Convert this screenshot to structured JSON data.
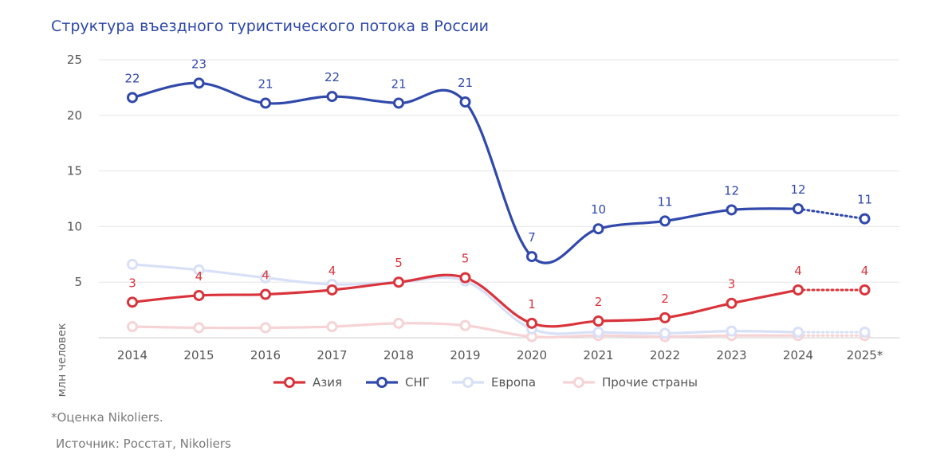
{
  "chart_data": {
    "type": "line",
    "title": "Структура въездного туристического потока в России",
    "ylabel": "млн человек",
    "xlabel": "",
    "categories": [
      "2014",
      "2015",
      "2016",
      "2017",
      "2018",
      "2019",
      "2020",
      "2021",
      "2022",
      "2023",
      "2024",
      "2025*"
    ],
    "ylim": [
      0,
      25
    ],
    "yticks": [
      "",
      "5",
      "10",
      "15",
      "20",
      "25"
    ],
    "grid": "horizontal",
    "legend_position": "bottom",
    "estimated_from_index": 10,
    "series": [
      {
        "name": "Азия",
        "color": "#d9343b",
        "values": [
          3.2,
          3.8,
          3.9,
          4.3,
          5.0,
          5.4,
          1.3,
          1.5,
          1.8,
          3.1,
          4.3,
          4.3
        ],
        "labels": [
          "3",
          "4",
          "4",
          "4",
          "5",
          "5",
          "1",
          "2",
          "2",
          "3",
          "4",
          "4"
        ]
      },
      {
        "name": "СНГ",
        "color": "#3049ab",
        "values": [
          21.6,
          22.9,
          21.1,
          21.7,
          21.1,
          21.2,
          7.3,
          9.8,
          10.5,
          11.5,
          11.6,
          10.7
        ],
        "labels": [
          "22",
          "23",
          "21",
          "22",
          "21",
          "21",
          "7",
          "10",
          "11",
          "12",
          "12",
          "11"
        ]
      },
      {
        "name": "Европа",
        "color": "#d8e0f7",
        "values": [
          6.6,
          6.1,
          5.4,
          4.8,
          5.0,
          5.1,
          0.8,
          0.5,
          0.4,
          0.6,
          0.5,
          0.5
        ]
      },
      {
        "name": "Прочие страны",
        "color": "#f6d3d5",
        "values": [
          1.0,
          0.9,
          0.9,
          1.0,
          1.3,
          1.1,
          0.1,
          0.2,
          0.1,
          0.2,
          0.2,
          0.2
        ]
      }
    ]
  },
  "footnote": "*Оценка Nikoliers.",
  "source": "Источник: Росстат, Nikoliers"
}
